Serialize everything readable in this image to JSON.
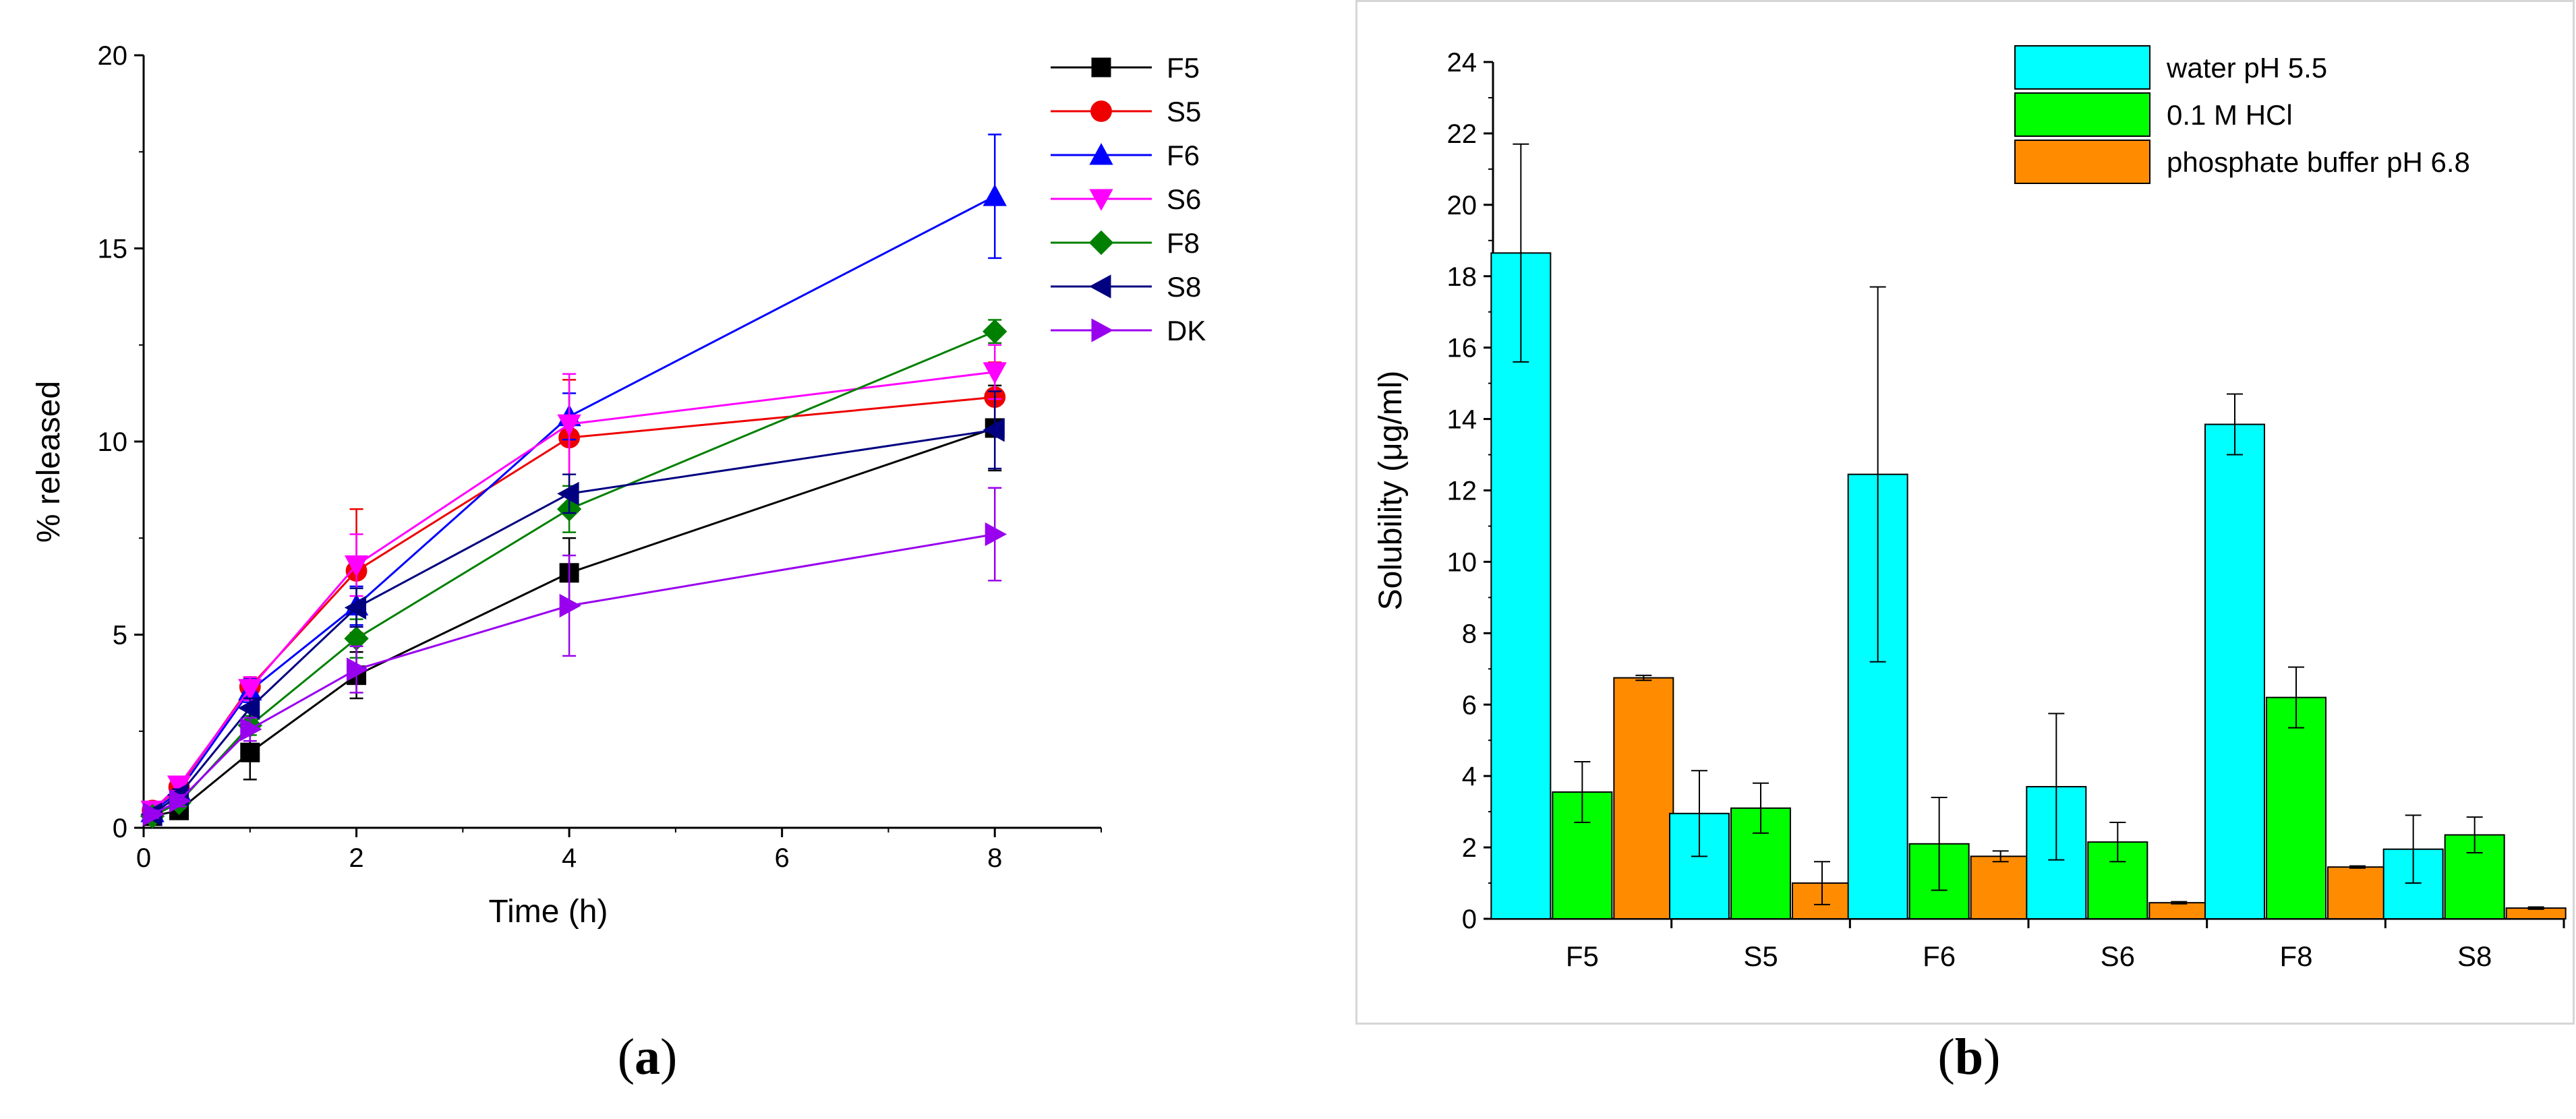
{
  "chart_data": [
    {
      "type": "line",
      "panel_label": "a",
      "xlabel": "Time (h)",
      "ylabel": "% released",
      "xlim": [
        0,
        9
      ],
      "ylim": [
        0,
        20
      ],
      "xticks": [
        "0",
        "2",
        "4",
        "6",
        "8"
      ],
      "yticks": [
        "0",
        "5",
        "10",
        "15",
        "20"
      ],
      "legend_position": "top-right",
      "x": [
        0.083,
        0.333,
        1,
        2,
        4,
        8
      ],
      "series": [
        {
          "name": "F5",
          "color": "#000000",
          "marker": "square",
          "values": [
            0.3,
            0.45,
            1.95,
            3.95,
            6.6,
            10.35
          ],
          "errors": [
            0.15,
            0.2,
            0.7,
            0.6,
            0.9,
            1.1
          ]
        },
        {
          "name": "S5",
          "color": "#ee0000",
          "marker": "circle",
          "values": [
            0.45,
            1.05,
            3.65,
            6.65,
            10.1,
            11.15
          ],
          "errors": [
            0.15,
            0.2,
            0.25,
            1.6,
            1.5,
            0.9
          ]
        },
        {
          "name": "F6",
          "color": "#0000ff",
          "marker": "triangle-up",
          "values": [
            0.4,
            0.95,
            3.55,
            5.75,
            10.65,
            16.35
          ],
          "errors": [
            0.15,
            0.2,
            0.3,
            0.5,
            0.6,
            1.6
          ]
        },
        {
          "name": "S6",
          "color": "#ff00ff",
          "marker": "triangle-down",
          "values": [
            0.45,
            1.1,
            3.6,
            6.8,
            10.45,
            11.8
          ],
          "errors": [
            0.15,
            0.2,
            0.3,
            0.8,
            1.3,
            0.7
          ]
        },
        {
          "name": "F8",
          "color": "#008000",
          "marker": "diamond",
          "values": [
            0.3,
            0.65,
            2.65,
            4.9,
            8.25,
            12.85
          ],
          "errors": [
            0.1,
            0.15,
            0.25,
            0.5,
            0.6,
            0.3
          ]
        },
        {
          "name": "S8",
          "color": "#000080",
          "marker": "triangle-left",
          "values": [
            0.35,
            0.85,
            3.1,
            5.7,
            8.65,
            10.3
          ],
          "errors": [
            0.1,
            0.15,
            0.25,
            0.5,
            0.5,
            1.0
          ]
        },
        {
          "name": "DK",
          "color": "#9900ee",
          "marker": "triangle-right",
          "values": [
            0.35,
            0.7,
            2.55,
            4.1,
            5.75,
            7.6
          ],
          "errors": [
            0.1,
            0.15,
            0.3,
            0.6,
            1.3,
            1.2
          ]
        }
      ]
    },
    {
      "type": "bar",
      "panel_label": "b",
      "xlabel": "",
      "ylabel": "Solubility (μg/ml)",
      "ylim": [
        0,
        24
      ],
      "yticks": [
        "0",
        "2",
        "4",
        "6",
        "8",
        "10",
        "12",
        "14",
        "16",
        "18",
        "20",
        "22",
        "24"
      ],
      "legend_position": "top-right",
      "categories": [
        "F5",
        "S5",
        "F6",
        "S6",
        "F8",
        "S8"
      ],
      "series": [
        {
          "name": "water pH 5.5",
          "color": "#00ffff",
          "values": [
            18.65,
            2.95,
            12.45,
            3.7,
            13.85,
            1.95
          ],
          "errors": [
            3.05,
            1.2,
            5.25,
            2.05,
            0.85,
            0.95
          ]
        },
        {
          "name": "0.1 M HCl",
          "color": "#00ff00",
          "values": [
            3.55,
            3.1,
            2.1,
            2.15,
            6.2,
            2.35
          ],
          "errors": [
            0.85,
            0.7,
            1.3,
            0.55,
            0.85,
            0.5
          ]
        },
        {
          "name": "phosphate buffer pH 6.8",
          "color": "#ff8c00",
          "values": [
            6.75,
            1.0,
            1.75,
            0.45,
            1.45,
            0.3
          ],
          "errors": [
            0.07,
            0.6,
            0.15,
            0.03,
            0.03,
            0.03
          ]
        }
      ]
    }
  ]
}
